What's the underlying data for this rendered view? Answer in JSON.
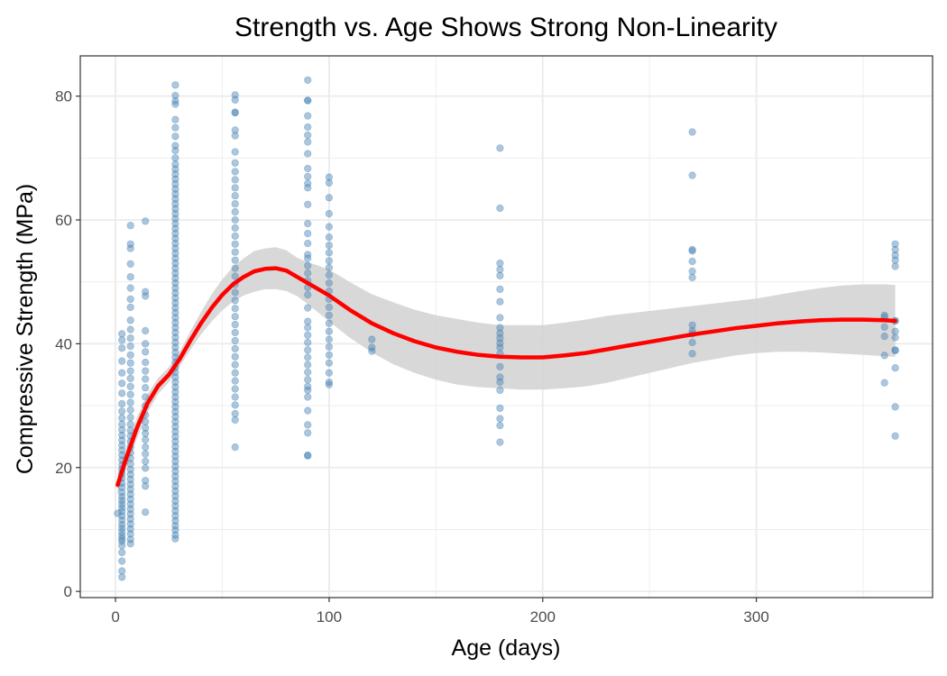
{
  "chart_data": {
    "type": "scatter",
    "title": "Strength vs. Age Shows Strong Non-Linearity",
    "xlabel": "Age (days)",
    "ylabel": "Compressive Strength (MPa)",
    "xlim": [
      -16.5,
      382.5
    ],
    "ylim": [
      -1.0,
      86.5
    ],
    "x_ticks": [
      0,
      100,
      200,
      300
    ],
    "y_ticks": [
      0,
      20,
      40,
      60,
      80
    ],
    "grid": true,
    "legend": "none",
    "colors": {
      "points": "#4682b4",
      "smooth": "#ff0000",
      "ribbon": "#d4d4d4",
      "grid": "#ebebeb",
      "panel_border": "#333333"
    },
    "series": [
      {
        "kind": "points",
        "groups": [
          {
            "x": 1,
            "y": [
              12.6
            ]
          },
          {
            "x": 3,
            "y": [
              2.3,
              3.3,
              4.9,
              6.3,
              7.4,
              8.1,
              8.5,
              9.0,
              9.6,
              10.2,
              10.8,
              11.5,
              12.2,
              12.9,
              13.5,
              14.1,
              14.7,
              15.3,
              16.0,
              16.8,
              17.5,
              18.3,
              19.0,
              19.7,
              20.4,
              21.2,
              22.0,
              22.8,
              23.6,
              24.4,
              25.2,
              26.1,
              27.0,
              28.0,
              29.1,
              30.3,
              32.0,
              33.6,
              35.3,
              37.2,
              39.3,
              40.6,
              41.6
            ]
          },
          {
            "x": 7,
            "y": [
              7.7,
              8.4,
              9.3,
              10.1,
              10.9,
              11.7,
              12.5,
              13.3,
              14.1,
              14.9,
              15.7,
              16.5,
              17.3,
              18.1,
              18.9,
              19.7,
              20.6,
              21.5,
              22.4,
              23.3,
              24.2,
              25.1,
              26.0,
              27.0,
              28.1,
              29.3,
              30.5,
              31.8,
              33.1,
              34.4,
              35.6,
              36.9,
              38.2,
              39.6,
              40.9,
              42.3,
              43.8,
              45.9,
              47.2,
              49.0,
              50.8,
              52.9,
              55.4,
              56.1,
              59.1
            ]
          },
          {
            "x": 14,
            "y": [
              12.8,
              17.0,
              17.9,
              19.9,
              21.0,
              22.2,
              23.3,
              24.5,
              25.5,
              26.4,
              27.4,
              28.5,
              30.0,
              31.4,
              32.9,
              34.3,
              35.6,
              37.0,
              38.7,
              40.0,
              42.1,
              47.7,
              48.4,
              59.8
            ]
          },
          {
            "x": 28,
            "y": [
              8.5,
              9.1,
              9.9,
              10.6,
              11.4,
              12.2,
              13.0,
              13.8,
              14.6,
              15.4,
              16.2,
              17.0,
              17.8,
              18.6,
              19.4,
              20.2,
              21.0,
              21.8,
              22.6,
              23.4,
              24.2,
              25.0,
              25.8,
              26.6,
              27.4,
              28.2,
              29.0,
              29.8,
              30.6,
              31.4,
              32.2,
              33.0,
              33.8,
              34.6,
              35.4,
              36.2,
              37.0,
              37.8,
              38.6,
              39.4,
              40.2,
              41.0,
              41.8,
              42.6,
              43.4,
              44.2,
              45.0,
              45.8,
              46.6,
              47.4,
              48.2,
              49.0,
              49.8,
              50.6,
              51.4,
              52.2,
              53.0,
              53.8,
              54.6,
              55.4,
              56.2,
              57.0,
              57.8,
              58.6,
              59.4,
              60.2,
              61.0,
              61.8,
              62.6,
              63.4,
              64.2,
              65.0,
              65.8,
              66.6,
              67.4,
              68.2,
              69.0,
              70.0,
              71.2,
              72.0,
              73.5,
              74.9,
              76.2,
              78.7,
              79.2,
              80.1,
              81.8
            ]
          },
          {
            "x": 56,
            "y": [
              23.3,
              27.7,
              28.7,
              30.1,
              31.4,
              32.7,
              34.0,
              35.3,
              36.6,
              37.9,
              39.2,
              40.5,
              41.8,
              43.1,
              44.4,
              45.7,
              47.0,
              48.3,
              49.6,
              50.9,
              52.2,
              53.5,
              54.8,
              56.1,
              57.4,
              58.7,
              60.0,
              61.3,
              62.6,
              63.9,
              65.2,
              66.5,
              67.8,
              69.2,
              71.0,
              73.6,
              74.5,
              77.3,
              77.4,
              79.4,
              80.2
            ]
          },
          {
            "x": 90,
            "y": [
              21.9,
              22.0,
              25.6,
              26.9,
              29.2,
              31.4,
              32.5,
              33.1,
              34.2,
              35.4,
              36.6,
              37.8,
              39.0,
              40.2,
              41.4,
              42.6,
              43.6,
              45.8,
              47.9,
              49.1,
              50.2,
              51.4,
              52.6,
              53.8,
              54.4,
              56.2,
              57.8,
              59.4,
              62.5,
              65.2,
              65.9,
              67.0,
              68.3,
              70.7,
              72.6,
              73.7,
              75.0,
              76.8,
              79.3,
              79.3,
              82.6
            ]
          },
          {
            "x": 100,
            "y": [
              33.4,
              33.8,
              35.3,
              36.9,
              38.2,
              39.5,
              40.7,
              42.0,
              43.3,
              44.6,
              45.9,
              47.2,
              48.5,
              49.8,
              51.1,
              52.3,
              53.4,
              54.7,
              55.9,
              57.2,
              58.9,
              61.0,
              63.6,
              66.0,
              66.9
            ]
          },
          {
            "x": 120,
            "y": [
              38.8,
              39.4,
              40.7
            ]
          },
          {
            "x": 180,
            "y": [
              24.1,
              26.8,
              27.9,
              29.6,
              32.5,
              33.8,
              34.6,
              36.3,
              38.4,
              39.4,
              40.1,
              40.9,
              41.7,
              42.6,
              44.2,
              46.8,
              48.8,
              51.0,
              52.0,
              53.0,
              61.9,
              71.6
            ]
          },
          {
            "x": 270,
            "y": [
              38.4,
              40.2,
              41.6,
              42.1,
              43.0,
              50.7,
              51.7,
              53.3,
              55.0,
              55.2,
              67.2,
              74.2
            ]
          },
          {
            "x": 360,
            "y": [
              33.7,
              38.1,
              41.2,
              42.7,
              44.3,
              44.6
            ]
          },
          {
            "x": 365,
            "y": [
              25.1,
              29.8,
              36.1,
              38.9,
              39.0,
              41.0,
              42.0,
              43.7,
              43.7,
              52.5,
              53.5,
              54.3,
              55.2,
              56.1
            ]
          }
        ]
      },
      {
        "kind": "smooth",
        "x": [
          1,
          5,
          10,
          15,
          20,
          25,
          30,
          35,
          40,
          45,
          50,
          55,
          60,
          65,
          70,
          75,
          80,
          85,
          90,
          95,
          100,
          110,
          120,
          130,
          140,
          150,
          160,
          170,
          180,
          190,
          200,
          210,
          220,
          230,
          240,
          250,
          260,
          270,
          280,
          290,
          300,
          310,
          320,
          330,
          340,
          350,
          360,
          365
        ],
        "y": [
          17.2,
          21.5,
          26.4,
          30.4,
          33.2,
          35.0,
          37.5,
          40.5,
          43.3,
          45.8,
          47.9,
          49.6,
          50.8,
          51.7,
          52.1,
          52.2,
          51.8,
          50.8,
          49.8,
          48.8,
          47.8,
          45.4,
          43.3,
          41.7,
          40.4,
          39.4,
          38.7,
          38.2,
          37.9,
          37.8,
          37.8,
          38.1,
          38.5,
          39.1,
          39.7,
          40.3,
          40.9,
          41.5,
          42.0,
          42.5,
          42.9,
          43.3,
          43.6,
          43.8,
          43.9,
          43.9,
          43.8,
          43.7
        ],
        "ci_lower": [
          15.5,
          19.8,
          24.7,
          28.9,
          31.9,
          33.8,
          36.3,
          39.0,
          41.5,
          43.6,
          45.4,
          46.8,
          47.8,
          48.4,
          48.8,
          48.8,
          48.5,
          47.7,
          46.4,
          45.0,
          43.6,
          40.9,
          38.6,
          36.7,
          35.3,
          34.2,
          33.4,
          33.0,
          32.8,
          32.6,
          32.6,
          32.8,
          33.1,
          33.7,
          34.5,
          35.3,
          36.1,
          36.9,
          37.5,
          38.1,
          38.5,
          38.7,
          38.7,
          38.6,
          38.4,
          38.2,
          38.0,
          37.9
        ],
        "ci_upper": [
          18.9,
          23.2,
          28.1,
          31.9,
          34.5,
          36.2,
          38.7,
          42.0,
          45.1,
          48.0,
          50.4,
          52.4,
          53.8,
          55.0,
          55.4,
          55.6,
          55.1,
          53.9,
          53.2,
          52.6,
          52.0,
          49.9,
          48.0,
          46.7,
          45.5,
          44.6,
          44.0,
          43.4,
          43.0,
          43.0,
          43.0,
          43.4,
          43.9,
          44.5,
          44.9,
          45.3,
          45.7,
          46.1,
          46.5,
          46.9,
          47.3,
          47.9,
          48.5,
          49.0,
          49.4,
          49.6,
          49.6,
          49.5
        ]
      }
    ]
  }
}
